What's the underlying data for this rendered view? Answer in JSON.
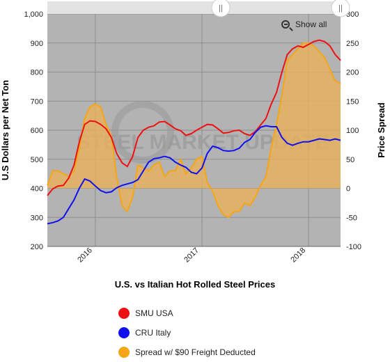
{
  "chart_data": {
    "type": "line",
    "title": "U.S. vs Italian Hot Rolled Steel Prices",
    "xlabel": "",
    "ylabel_left": "U.S Dollars per Net Ton",
    "ylabel_right": "Price Spread",
    "ylim_left": [
      200,
      1000
    ],
    "ylim_right": [
      -100,
      300
    ],
    "yticks_left": [
      "200",
      "300",
      "400",
      "500",
      "600",
      "700",
      "800",
      "900",
      "1,000"
    ],
    "yticks_right": [
      "-100",
      "-50",
      "0",
      "50",
      "100",
      "150",
      "200",
      "250",
      "300"
    ],
    "xlim": [
      2015.55,
      2018.3
    ],
    "xticks": [
      {
        "label": "2016",
        "x": 2016
      },
      {
        "label": "2017",
        "x": 2017
      },
      {
        "label": "2018",
        "x": 2018
      }
    ],
    "grid": true,
    "legend_position": "bottom",
    "series": [
      {
        "name": "SMU USA",
        "axis": "left",
        "color": "#ee1111",
        "x": [
          2015.55,
          2015.6,
          2015.65,
          2015.7,
          2015.75,
          2015.8,
          2015.85,
          2015.9,
          2015.95,
          2016.0,
          2016.05,
          2016.1,
          2016.15,
          2016.2,
          2016.25,
          2016.3,
          2016.35,
          2016.4,
          2016.45,
          2016.5,
          2016.55,
          2016.6,
          2016.65,
          2016.7,
          2016.75,
          2016.8,
          2016.85,
          2016.9,
          2016.95,
          2017.0,
          2017.05,
          2017.1,
          2017.15,
          2017.2,
          2017.25,
          2017.3,
          2017.35,
          2017.4,
          2017.45,
          2017.5,
          2017.55,
          2017.6,
          2017.65,
          2017.7,
          2017.75,
          2017.8,
          2017.85,
          2017.9,
          2017.95,
          2018.0,
          2018.05,
          2018.1,
          2018.15,
          2018.2,
          2018.25,
          2018.3
        ],
        "values": [
          375,
          398,
          408,
          410,
          435,
          480,
          560,
          620,
          632,
          630,
          620,
          605,
          575,
          520,
          488,
          475,
          510,
          575,
          600,
          610,
          615,
          628,
          630,
          618,
          605,
          598,
          582,
          588,
          600,
          610,
          620,
          618,
          605,
          590,
          592,
          598,
          600,
          588,
          582,
          595,
          618,
          640,
          690,
          730,
          800,
          860,
          880,
          890,
          885,
          895,
          905,
          910,
          905,
          890,
          860,
          840
        ]
      },
      {
        "name": "CRU Italy",
        "axis": "left",
        "color": "#1111ee",
        "x": [
          2015.55,
          2015.6,
          2015.65,
          2015.7,
          2015.75,
          2015.8,
          2015.85,
          2015.9,
          2015.95,
          2016.0,
          2016.05,
          2016.1,
          2016.15,
          2016.2,
          2016.25,
          2016.3,
          2016.35,
          2016.4,
          2016.45,
          2016.5,
          2016.55,
          2016.6,
          2016.65,
          2016.7,
          2016.75,
          2016.8,
          2016.85,
          2016.9,
          2016.95,
          2017.0,
          2017.05,
          2017.1,
          2017.15,
          2017.2,
          2017.25,
          2017.3,
          2017.35,
          2017.4,
          2017.45,
          2017.5,
          2017.55,
          2017.6,
          2017.65,
          2017.7,
          2017.75,
          2017.8,
          2017.85,
          2017.9,
          2017.95,
          2018.0,
          2018.05,
          2018.1,
          2018.15,
          2018.2,
          2018.25,
          2018.3
        ],
        "values": [
          278,
          282,
          288,
          300,
          330,
          360,
          400,
          432,
          425,
          408,
          392,
          385,
          388,
          402,
          410,
          415,
          420,
          430,
          460,
          490,
          502,
          505,
          510,
          505,
          490,
          480,
          472,
          455,
          450,
          470,
          520,
          545,
          540,
          530,
          528,
          530,
          538,
          558,
          568,
          592,
          610,
          615,
          612,
          612,
          575,
          555,
          548,
          555,
          560,
          560,
          565,
          570,
          568,
          565,
          570,
          565
        ]
      },
      {
        "name": "Spread w/ $90 Freight Deducted",
        "axis": "right",
        "type": "area",
        "color": "#f5a516",
        "x": [
          2015.55,
          2015.6,
          2015.65,
          2015.7,
          2015.75,
          2015.8,
          2015.85,
          2015.9,
          2015.95,
          2016.0,
          2016.05,
          2016.1,
          2016.15,
          2016.2,
          2016.25,
          2016.3,
          2016.35,
          2016.4,
          2016.45,
          2016.5,
          2016.55,
          2016.6,
          2016.65,
          2016.7,
          2016.75,
          2016.8,
          2016.85,
          2016.9,
          2016.95,
          2017.0,
          2017.05,
          2017.1,
          2017.15,
          2017.2,
          2017.25,
          2017.3,
          2017.35,
          2017.4,
          2017.45,
          2017.5,
          2017.55,
          2017.6,
          2017.65,
          2017.7,
          2017.75,
          2017.8,
          2017.85,
          2017.9,
          2017.95,
          2018.0,
          2018.05,
          2018.1,
          2018.15,
          2018.2,
          2018.25,
          2018.3
        ],
        "values": [
          5,
          30,
          30,
          25,
          20,
          30,
          70,
          120,
          140,
          145,
          140,
          110,
          90,
          20,
          -30,
          -40,
          -15,
          40,
          35,
          30,
          40,
          45,
          20,
          30,
          30,
          50,
          25,
          35,
          50,
          55,
          10,
          -5,
          -30,
          -45,
          -50,
          -40,
          -40,
          -25,
          -30,
          -15,
          5,
          20,
          70,
          110,
          160,
          220,
          230,
          240,
          250,
          250,
          245,
          235,
          225,
          205,
          185,
          180
        ]
      }
    ]
  },
  "watermark": "STEEL MARKET UPDATE",
  "navigator": {
    "left_handle": "||",
    "right_handle": "||"
  },
  "controls": {
    "show_all_label": "Show all"
  },
  "colors": {
    "plot_background": "#b3b3b3",
    "grid": "#8e8e8e",
    "area_fill": "#e8b25a"
  }
}
